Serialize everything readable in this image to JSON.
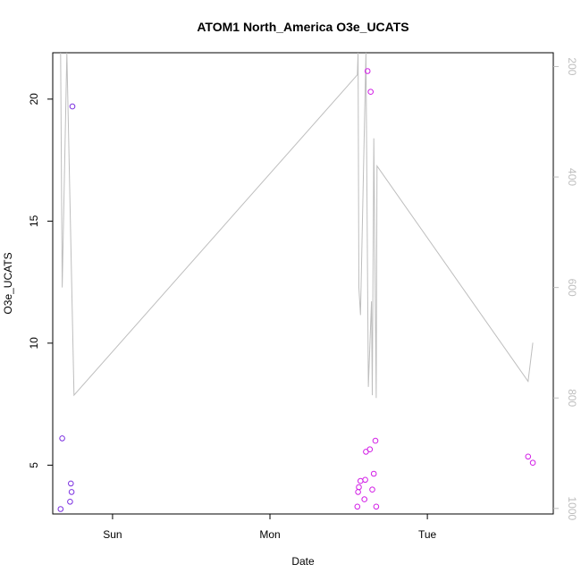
{
  "chart_data": {
    "type": "scatter",
    "title": "ATOM1 North_America O3e_UCATS",
    "xlabel": "Date",
    "ylabel": "O3e_UCATS",
    "x_ticks": [
      {
        "label": "Sun",
        "value": 1.0
      },
      {
        "label": "Mon",
        "value": 2.0
      },
      {
        "label": "Tue",
        "value": 3.0
      }
    ],
    "xlim": [
      0.62,
      3.8
    ],
    "y_ticks": [
      5,
      10,
      15,
      20
    ],
    "ylim": [
      3.0,
      21.9
    ],
    "y2_ticks": [
      200,
      400,
      600,
      800,
      1000
    ],
    "y2lim": [
      1010,
      175
    ],
    "y2_reversed": true,
    "series": [
      {
        "color": "#7B2FE0",
        "points": [
          {
            "x": 0.67,
            "y": 3.2
          },
          {
            "x": 0.68,
            "y": 6.1
          },
          {
            "x": 0.73,
            "y": 3.5
          },
          {
            "x": 0.735,
            "y": 4.25
          },
          {
            "x": 0.74,
            "y": 3.9
          },
          {
            "x": 0.745,
            "y": 19.7
          }
        ]
      },
      {
        "color": "#D21EE6",
        "points": [
          {
            "x": 2.555,
            "y": 3.3
          },
          {
            "x": 2.56,
            "y": 3.9
          },
          {
            "x": 2.565,
            "y": 4.1
          },
          {
            "x": 2.575,
            "y": 4.35
          },
          {
            "x": 2.6,
            "y": 3.6
          },
          {
            "x": 2.605,
            "y": 4.4
          },
          {
            "x": 2.61,
            "y": 5.55
          },
          {
            "x": 2.62,
            "y": 21.15
          },
          {
            "x": 2.635,
            "y": 5.65
          },
          {
            "x": 2.64,
            "y": 20.3
          },
          {
            "x": 2.65,
            "y": 4.0
          },
          {
            "x": 2.66,
            "y": 4.65
          },
          {
            "x": 2.67,
            "y": 6.0
          },
          {
            "x": 2.675,
            "y": 3.3
          },
          {
            "x": 3.64,
            "y": 5.35
          },
          {
            "x": 3.67,
            "y": 5.1
          }
        ]
      }
    ],
    "pressure_line": {
      "color": "#bebebe",
      "points": [
        {
          "x": 0.67,
          "y2": 175
        },
        {
          "x": 0.68,
          "y2": 600
        },
        {
          "x": 0.71,
          "y2": 175
        },
        {
          "x": 0.755,
          "y2": 795
        },
        {
          "x": 2.555,
          "y2": 215
        },
        {
          "x": 2.56,
          "y2": 175
        },
        {
          "x": 2.565,
          "y2": 600
        },
        {
          "x": 2.575,
          "y2": 650
        },
        {
          "x": 2.61,
          "y2": 175
        },
        {
          "x": 2.625,
          "y2": 780
        },
        {
          "x": 2.645,
          "y2": 625
        },
        {
          "x": 2.65,
          "y2": 795
        },
        {
          "x": 2.66,
          "y2": 330
        },
        {
          "x": 2.675,
          "y2": 800
        },
        {
          "x": 2.68,
          "y2": 380
        },
        {
          "x": 3.64,
          "y2": 770
        },
        {
          "x": 3.67,
          "y2": 700
        }
      ]
    }
  }
}
